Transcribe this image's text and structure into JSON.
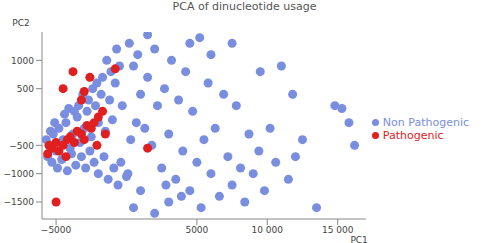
{
  "chart_data": {
    "type": "scatter",
    "title": "PCA of dinucleotide usage",
    "x_label": "PC1",
    "y_label": "PC2",
    "xlim": [
      -6000,
      17000
    ],
    "ylim": [
      -1800,
      1500
    ],
    "xticks": [
      {
        "value": -5000,
        "label": "−5000"
      },
      5000,
      {
        "value": 10000,
        "label": "10 000"
      },
      {
        "value": 15000,
        "label": "15 000"
      }
    ],
    "yticks": [
      {
        "value": -1500,
        "label": "−1500"
      },
      {
        "value": -1000,
        "label": "−1000"
      },
      {
        "value": -500,
        "label": "−500"
      },
      500,
      1000
    ],
    "legend": "right",
    "series": [
      {
        "name": "Non Pathogenic",
        "color": "#7a8ee0",
        "marker": "circle",
        "x": [
          -5500,
          -5200,
          -5000,
          -4800,
          -4500,
          -4300,
          -4000,
          -3800,
          -3500,
          -3300,
          -3000,
          -2800,
          -2500,
          -2200,
          -2000,
          -1800,
          -1500,
          -1200,
          -1000,
          -800,
          -5600,
          -5300,
          -4900,
          -4600,
          -4200,
          -3900,
          -3600,
          -3200,
          -2900,
          -2600,
          -2300,
          -2000,
          -1600,
          -1300,
          -900,
          -600,
          -400,
          -300,
          -500,
          -700,
          -1100,
          -1400,
          -1700,
          -2100,
          -2400,
          -2700,
          -3100,
          -3400,
          -3700,
          -4100,
          -4400,
          -5100,
          -5400,
          -5700,
          200,
          500,
          800,
          1000,
          1300,
          1500,
          1800,
          2000,
          2200,
          2500,
          2700,
          3000,
          3200,
          3500,
          3700,
          4000,
          4200,
          4500,
          4700,
          5000,
          5200,
          5500,
          5800,
          6000,
          6300,
          6600,
          6900,
          7200,
          7500,
          7800,
          8100,
          8400,
          8700,
          9000,
          9400,
          9800,
          10200,
          10600,
          11000,
          11500,
          12000,
          12500,
          13500,
          14800,
          15300,
          15800,
          16200,
          3000,
          1000,
          500,
          2000,
          6000,
          7500,
          4500,
          1500,
          300,
          700,
          100,
          0,
          9500,
          11800,
          2800,
          5300,
          3900
        ],
        "y": [
          -500,
          -300,
          -600,
          -200,
          -400,
          -100,
          -550,
          -300,
          0,
          -450,
          -200,
          100,
          -350,
          200,
          -100,
          400,
          -250,
          300,
          -50,
          600,
          -700,
          -800,
          -900,
          -750,
          -950,
          -650,
          -850,
          -700,
          -900,
          -600,
          -800,
          -1000,
          -700,
          -1100,
          -900,
          -1200,
          -800,
          200,
          900,
          1200,
          800,
          1000,
          700,
          600,
          500,
          300,
          400,
          200,
          100,
          150,
          50,
          -100,
          -250,
          -400,
          1300,
          900,
          1100,
          400,
          -200,
          700,
          -500,
          1200,
          200,
          -900,
          500,
          -300,
          1000,
          -1100,
          300,
          -600,
          800,
          -1300,
          100,
          -800,
          1400,
          -400,
          600,
          -1000,
          -200,
          -1400,
          400,
          -700,
          -1200,
          200,
          -900,
          -1500,
          -300,
          -1000,
          -600,
          -1300,
          -200,
          -800,
          900,
          -1100,
          -700,
          -400,
          -1600,
          200,
          150,
          -100,
          -500,
          -1500,
          -1300,
          -1600,
          -1700,
          1100,
          1300,
          1300,
          1450,
          -400,
          -100,
          -1000,
          -1050,
          800,
          400,
          -1200,
          -1600,
          -1400
        ]
      },
      {
        "name": "Pathogenic",
        "color": "#e02020",
        "marker": "circle",
        "x": [
          -5500,
          -5300,
          -5000,
          -4800,
          -4500,
          -4200,
          -4000,
          -3700,
          -3500,
          -3200,
          -3000,
          -2800,
          -2500,
          -2300,
          -2000,
          -1700,
          -1500,
          -4500,
          -3200,
          -3000,
          -2600,
          -3800,
          -5000,
          1500,
          -800,
          -4300,
          -2100,
          -5600
        ],
        "y": [
          -500,
          -550,
          -450,
          -600,
          -500,
          -400,
          -350,
          -450,
          -250,
          -300,
          -400,
          -150,
          -200,
          -100,
          0,
          100,
          -300,
          500,
          300,
          450,
          700,
          800,
          -1500,
          -550,
          850,
          -700,
          -500,
          -650
        ]
      }
    ]
  }
}
